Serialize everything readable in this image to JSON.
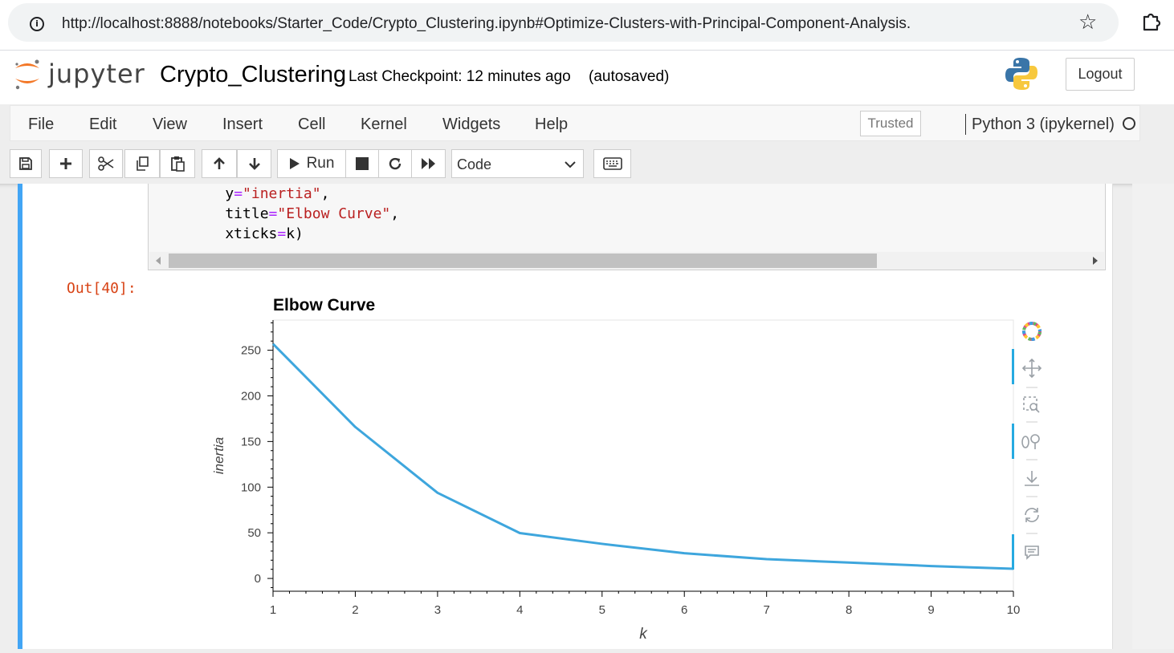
{
  "browser": {
    "url": "http://localhost:8888/notebooks/Starter_Code/Crypto_Clustering.ipynb#Optimize-Clusters-with-Principal-Component-Analysis."
  },
  "header": {
    "logo_text": "jupyter",
    "notebook_name": "Crypto_Clustering",
    "checkpoint": "Last Checkpoint: 12 minutes ago",
    "autosave": "(autosaved)",
    "logout_label": "Logout"
  },
  "menu": {
    "items": [
      "File",
      "Edit",
      "View",
      "Insert",
      "Cell",
      "Kernel",
      "Widgets",
      "Help"
    ],
    "trusted_label": "Trusted",
    "kernel_name": "Python 3 (ipykernel)"
  },
  "toolbar": {
    "run_label": "Run",
    "cell_type": "Code"
  },
  "cell": {
    "code_lines": [
      [
        {
          "t": "    y",
          "c": ""
        },
        {
          "t": "=",
          "c": "op"
        },
        {
          "t": "\"inertia\"",
          "c": "str"
        },
        {
          "t": ",",
          "c": ""
        }
      ],
      [
        {
          "t": "    title",
          "c": ""
        },
        {
          "t": "=",
          "c": "op"
        },
        {
          "t": "\"Elbow Curve\"",
          "c": "str"
        },
        {
          "t": ",",
          "c": ""
        }
      ],
      [
        {
          "t": "    xticks",
          "c": ""
        },
        {
          "t": "=",
          "c": "op"
        },
        {
          "t": "k)",
          "c": ""
        }
      ]
    ],
    "out_prompt": "Out[40]:"
  },
  "chart_data": {
    "type": "line",
    "title": "Elbow Curve",
    "xlabel": "k",
    "ylabel": "inertia",
    "x": [
      1,
      2,
      3,
      4,
      5,
      6,
      7,
      8,
      9,
      10
    ],
    "series": [
      {
        "values": [
          256.9,
          165.9,
          93.8,
          49.7,
          37.9,
          27.6,
          21.1,
          17.4,
          13.6,
          10.6
        ],
        "color": "#3ea6dd"
      }
    ],
    "xlim": [
      1,
      10
    ],
    "ylim": [
      -14,
      283
    ],
    "yticks": [
      0,
      50,
      100,
      150,
      200,
      250
    ],
    "xticks": [
      1,
      2,
      3,
      4,
      5,
      6,
      7,
      8,
      9,
      10
    ],
    "grid": false,
    "legend": "none"
  },
  "chart_toolbar": {
    "tools": [
      "bokeh-logo-icon",
      "pan-icon",
      "box-zoom-icon",
      "wheel-zoom-icon",
      "save-icon",
      "reset-icon",
      "hover-icon"
    ]
  }
}
